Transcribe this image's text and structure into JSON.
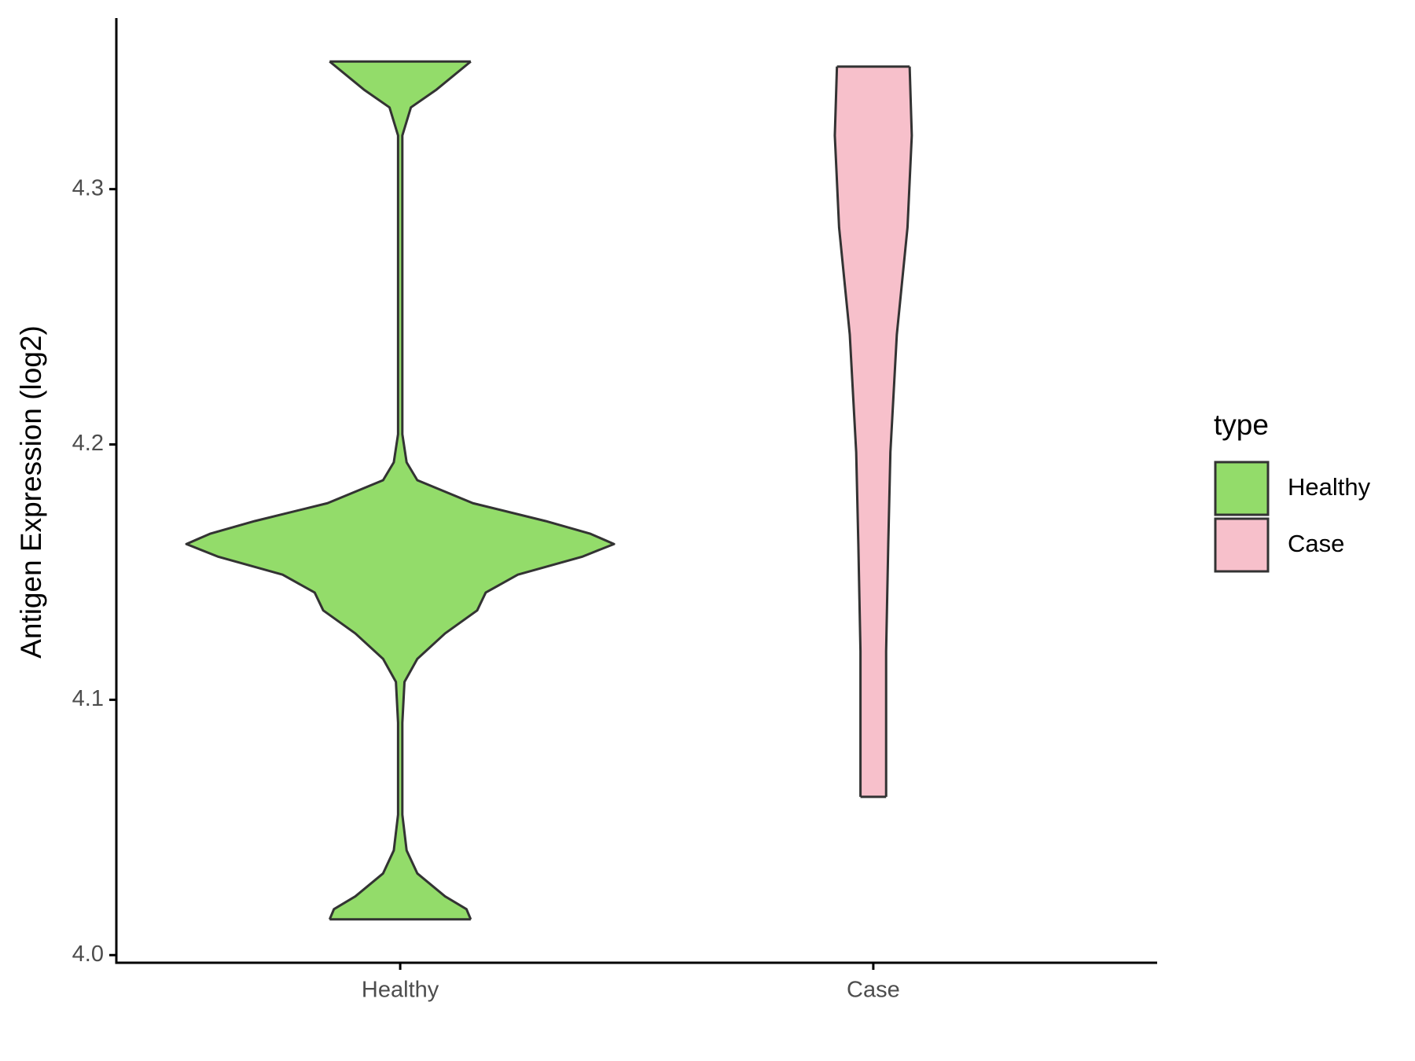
{
  "chart_data": {
    "type": "violin",
    "y_label": "Antigen Expression (log2)",
    "categories": [
      "Healthy",
      "Case"
    ],
    "legend_title": "type",
    "legend_position": "right",
    "ylim": [
      3.997,
      4.367
    ],
    "yticks": [
      {
        "value": 4.0,
        "label": "4.0"
      },
      4.1,
      4.2,
      4.3
    ],
    "series": [
      {
        "name": "Healthy",
        "color": "#93dc6a",
        "y": [
          4.35,
          4.339,
          4.332,
          4.321,
          4.303,
          4.232,
          4.204,
          4.193,
          4.186,
          4.177,
          4.17,
          4.165,
          4.161,
          4.156,
          4.149,
          4.142,
          4.135,
          4.126,
          4.116,
          4.107,
          4.091,
          4.055,
          4.041,
          4.032,
          4.023,
          4.018,
          4.014
        ],
        "density": [
          0.33,
          0.17,
          0.05,
          0.01,
          0.01,
          0.01,
          0.01,
          0.03,
          0.08,
          0.34,
          0.68,
          0.89,
          1,
          0.85,
          0.55,
          0.4,
          0.36,
          0.21,
          0.08,
          0.02,
          0.01,
          0.01,
          0.03,
          0.08,
          0.21,
          0.31,
          0.33
        ]
      },
      {
        "name": "Case",
        "color": "#f7c0cb",
        "y": [
          4.348,
          4.321,
          4.285,
          4.243,
          4.197,
          4.161,
          4.119,
          4.091,
          4.062
        ],
        "density": [
          0.17,
          0.18,
          0.16,
          0.11,
          0.08,
          0.07,
          0.06,
          0.06,
          0.06
        ]
      }
    ]
  }
}
